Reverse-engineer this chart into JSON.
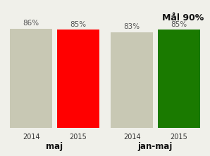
{
  "groups": [
    {
      "label": "maj",
      "bars": [
        {
          "year": "2014",
          "value": 86,
          "color": "#c8c8b4"
        },
        {
          "year": "2015",
          "value": 85,
          "color": "#ff0000"
        }
      ]
    },
    {
      "label": "jan-maj",
      "bars": [
        {
          "year": "2014",
          "value": 83,
          "color": "#c8c8b4"
        },
        {
          "year": "2015",
          "value": 85,
          "color": "#1a7a00"
        }
      ]
    }
  ],
  "mal_text": "Mål 90%",
  "background_color": "#f0f0ea",
  "ylim": [
    0,
    100
  ],
  "bar_width": 0.38,
  "value_fontsize": 7.5,
  "mal_fontsize": 9,
  "group_label_fontsize": 8.5,
  "year_label_fontsize": 7,
  "value_color": "#555555",
  "year_color": "#333333",
  "group_label_color": "#111111",
  "mal_color": "#111111"
}
